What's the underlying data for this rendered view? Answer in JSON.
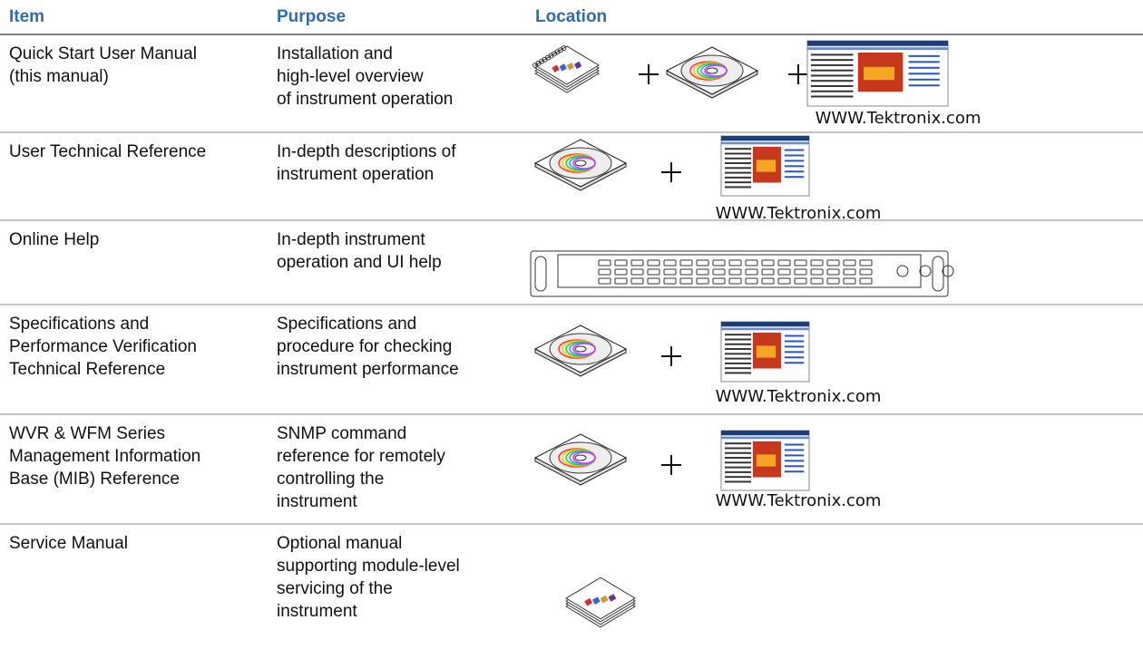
{
  "table": {
    "headers": [
      "Item",
      "Purpose",
      "Location"
    ],
    "rows": [
      {
        "item": [
          "Quick Start User Manual",
          "(this manual)"
        ],
        "purpose": [
          "Installation  and",
          "high-level overview",
          "of instrument operation"
        ],
        "url": "WWW.Tektronix.com"
      },
      {
        "item": [
          "User Technical Reference"
        ],
        "purpose": [
          "In-depth descriptions of",
          "instrument operation"
        ],
        "url": "WWW.Tektronix.com"
      },
      {
        "item": [
          "Online Help"
        ],
        "purpose": [
          "In-depth instrument",
          "operation and UI help"
        ]
      },
      {
        "item": [
          "Specifications  and",
          "Performance Verification",
          "Technical Reference"
        ],
        "purpose": [
          "Specifications and",
          "procedure for checking",
          "instrument performance"
        ],
        "url": "WWW.Tektronix.com"
      },
      {
        "item": [
          "WVR & WFM Series",
          "Management Information",
          "Base (MIB) Reference"
        ],
        "purpose": [
          "SNMP command",
          "reference for remotely",
          "controlling  the",
          "instrument"
        ],
        "url": "WWW.Tektronix.com"
      },
      {
        "item": [
          "Service Manual"
        ],
        "purpose": [
          "Optional manual",
          "supporting module-level",
          "servicing of the",
          "instrument"
        ]
      }
    ]
  }
}
